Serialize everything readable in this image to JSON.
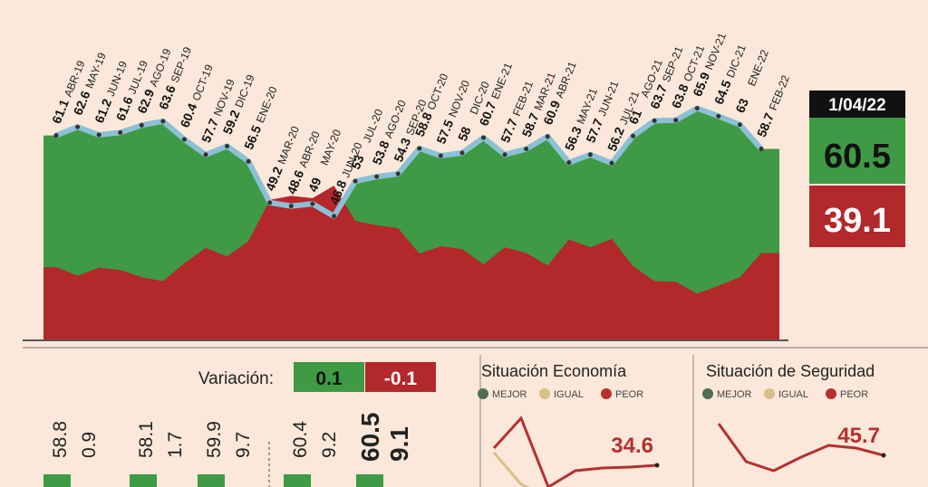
{
  "chart_data": [
    {
      "type": "approval-area",
      "categories": [
        "ABR-19",
        "MAY-19",
        "JUN-19",
        "JUL-19",
        "AGO-19",
        "SEP-19",
        "OCT-19",
        "NOV-19",
        "DIC-19",
        "ENE-20",
        "MAR-20",
        "ABR-20",
        "MAY-20",
        "JUN-20",
        "JUL-20",
        "AGO-20",
        "SEP-20",
        "OCT-20",
        "NOV-20",
        "DIC-20",
        "ENE-21",
        "FEB-21",
        "MAR-21",
        "ABR-21",
        "MAY-21",
        "JUN-21",
        "JUL-21",
        "AGO-21",
        "SEP-21",
        "OCT-21",
        "NOV-21",
        "DIC-21",
        "ENE-22",
        "FEB-22"
      ],
      "series": [
        {
          "color": "#3f9a45",
          "values": [
            61.1,
            62.6,
            61.2,
            61.6,
            62.9,
            63.6,
            60.4,
            57.7,
            59.2,
            56.5,
            49.2,
            48.6,
            49.0,
            46.8,
            53.0,
            53.8,
            54.3,
            58.8,
            57.5,
            58.0,
            60.7,
            57.7,
            58.7,
            60.9,
            56.3,
            57.7,
            56.2,
            61.0,
            63.7,
            63.8,
            65.9,
            64.5,
            63.0,
            58.7
          ]
        },
        {
          "color": "#b3282a",
          "values": [
            37.8,
            36.3,
            37.7,
            37.3,
            36.0,
            35.3,
            38.5,
            41.2,
            39.7,
            42.4,
            49.7,
            50.4,
            50.0,
            52.2,
            46.0,
            45.2,
            44.7,
            40.2,
            41.5,
            41.0,
            38.3,
            41.3,
            40.3,
            38.1,
            42.7,
            41.3,
            42.8,
            38.0,
            35.3,
            35.2,
            33.1,
            34.5,
            36.0,
            40.3
          ]
        }
      ],
      "line_color": "#8cc0d6",
      "ylim": [
        25,
        70
      ]
    },
    {
      "type": "line",
      "title": "Situación Economía",
      "categories": [
        null,
        null,
        null,
        null,
        null,
        null,
        null
      ],
      "series": [
        {
          "name": "MEJOR",
          "color": "#4e6e52",
          "values": [
            null,
            null,
            null,
            null,
            null,
            null,
            null
          ]
        },
        {
          "name": "IGUAL",
          "color": "#d9bf88",
          "values": [
            36.0,
            32.5,
            31.0,
            32.0,
            30.0,
            30.0,
            30.0
          ]
        },
        {
          "name": "PEOR",
          "color": "#b5302f",
          "values": [
            36.5,
            39.8,
            32.2,
            34.0,
            34.3,
            34.4,
            34.6
          ]
        }
      ],
      "ylim": [
        30,
        40
      ]
    },
    {
      "type": "line",
      "title": "Situación de Seguridad",
      "categories": [
        null,
        null,
        null,
        null,
        null,
        null,
        null
      ],
      "series": [
        {
          "name": "MEJOR",
          "color": "#4e6e52",
          "values": [
            null,
            null,
            null,
            null,
            null,
            null,
            null
          ]
        },
        {
          "name": "IGUAL",
          "color": "#d9bf88",
          "values": [
            null,
            null,
            null,
            null,
            null,
            null,
            null
          ]
        },
        {
          "name": "PEOR",
          "color": "#b5302f",
          "values": [
            49.2,
            45.0,
            44.0,
            45.5,
            46.8,
            46.5,
            45.7
          ]
        }
      ],
      "ylim": [
        40,
        50
      ]
    }
  ],
  "latest": {
    "date": "1/04/22",
    "approve": 60.5,
    "disapprove": 39.1
  },
  "variation": {
    "label": "Variación:",
    "approve": 0.1,
    "disapprove": -0.1
  },
  "bottom_panel": {
    "values": [
      58.8,
      0.9,
      58.1,
      1.7,
      59.9,
      9.7,
      60.4,
      9.2,
      60.5,
      9.1
    ]
  }
}
